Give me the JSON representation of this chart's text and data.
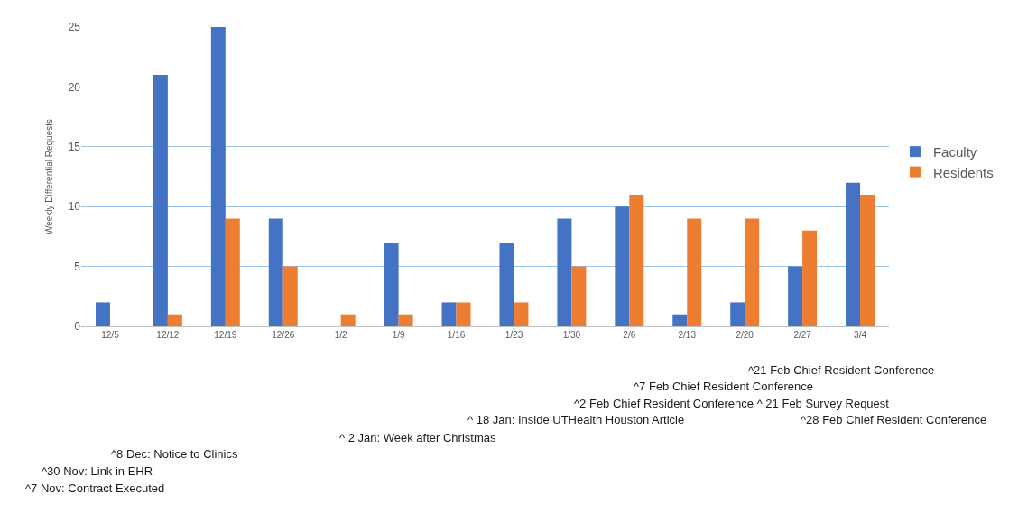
{
  "chart_data": {
    "type": "bar",
    "ylabel": "Weekly Differential Requests",
    "categories": [
      "12/5",
      "12/12",
      "12/19",
      "12/26",
      "1/2",
      "1/9",
      "1/16",
      "1/23",
      "1/30",
      "2/6",
      "2/13",
      "2/20",
      "2/27",
      "3/4"
    ],
    "series": [
      {
        "name": "Faculty",
        "color": "#4472c4",
        "values": [
          2,
          21,
          25,
          9,
          0,
          7,
          2,
          7,
          9,
          10,
          1,
          2,
          5,
          12
        ]
      },
      {
        "name": "Residents",
        "color": "#ed7d31",
        "values": [
          0,
          1,
          9,
          5,
          1,
          1,
          2,
          2,
          5,
          11,
          9,
          9,
          8,
          11
        ]
      }
    ],
    "ylim": [
      0,
      25
    ],
    "yticks": [
      0,
      5,
      10,
      15,
      20,
      25
    ],
    "grid": "y",
    "legend": "right",
    "annotations": [
      "^21 Feb Chief Resident Conference",
      "^7 Feb Chief Resident Conference",
      "^2 Feb Chief Resident Conference ^ 21 Feb Survey Request",
      "^ 18 Jan: Inside UTHealth Houston Article",
      "^28 Feb Chief Resident Conference",
      "^ 2 Jan: Week after Christmas",
      "^8 Dec: Notice to Clinics",
      "^30 Nov: Link in EHR",
      "^7 Nov: Contract Executed"
    ]
  }
}
